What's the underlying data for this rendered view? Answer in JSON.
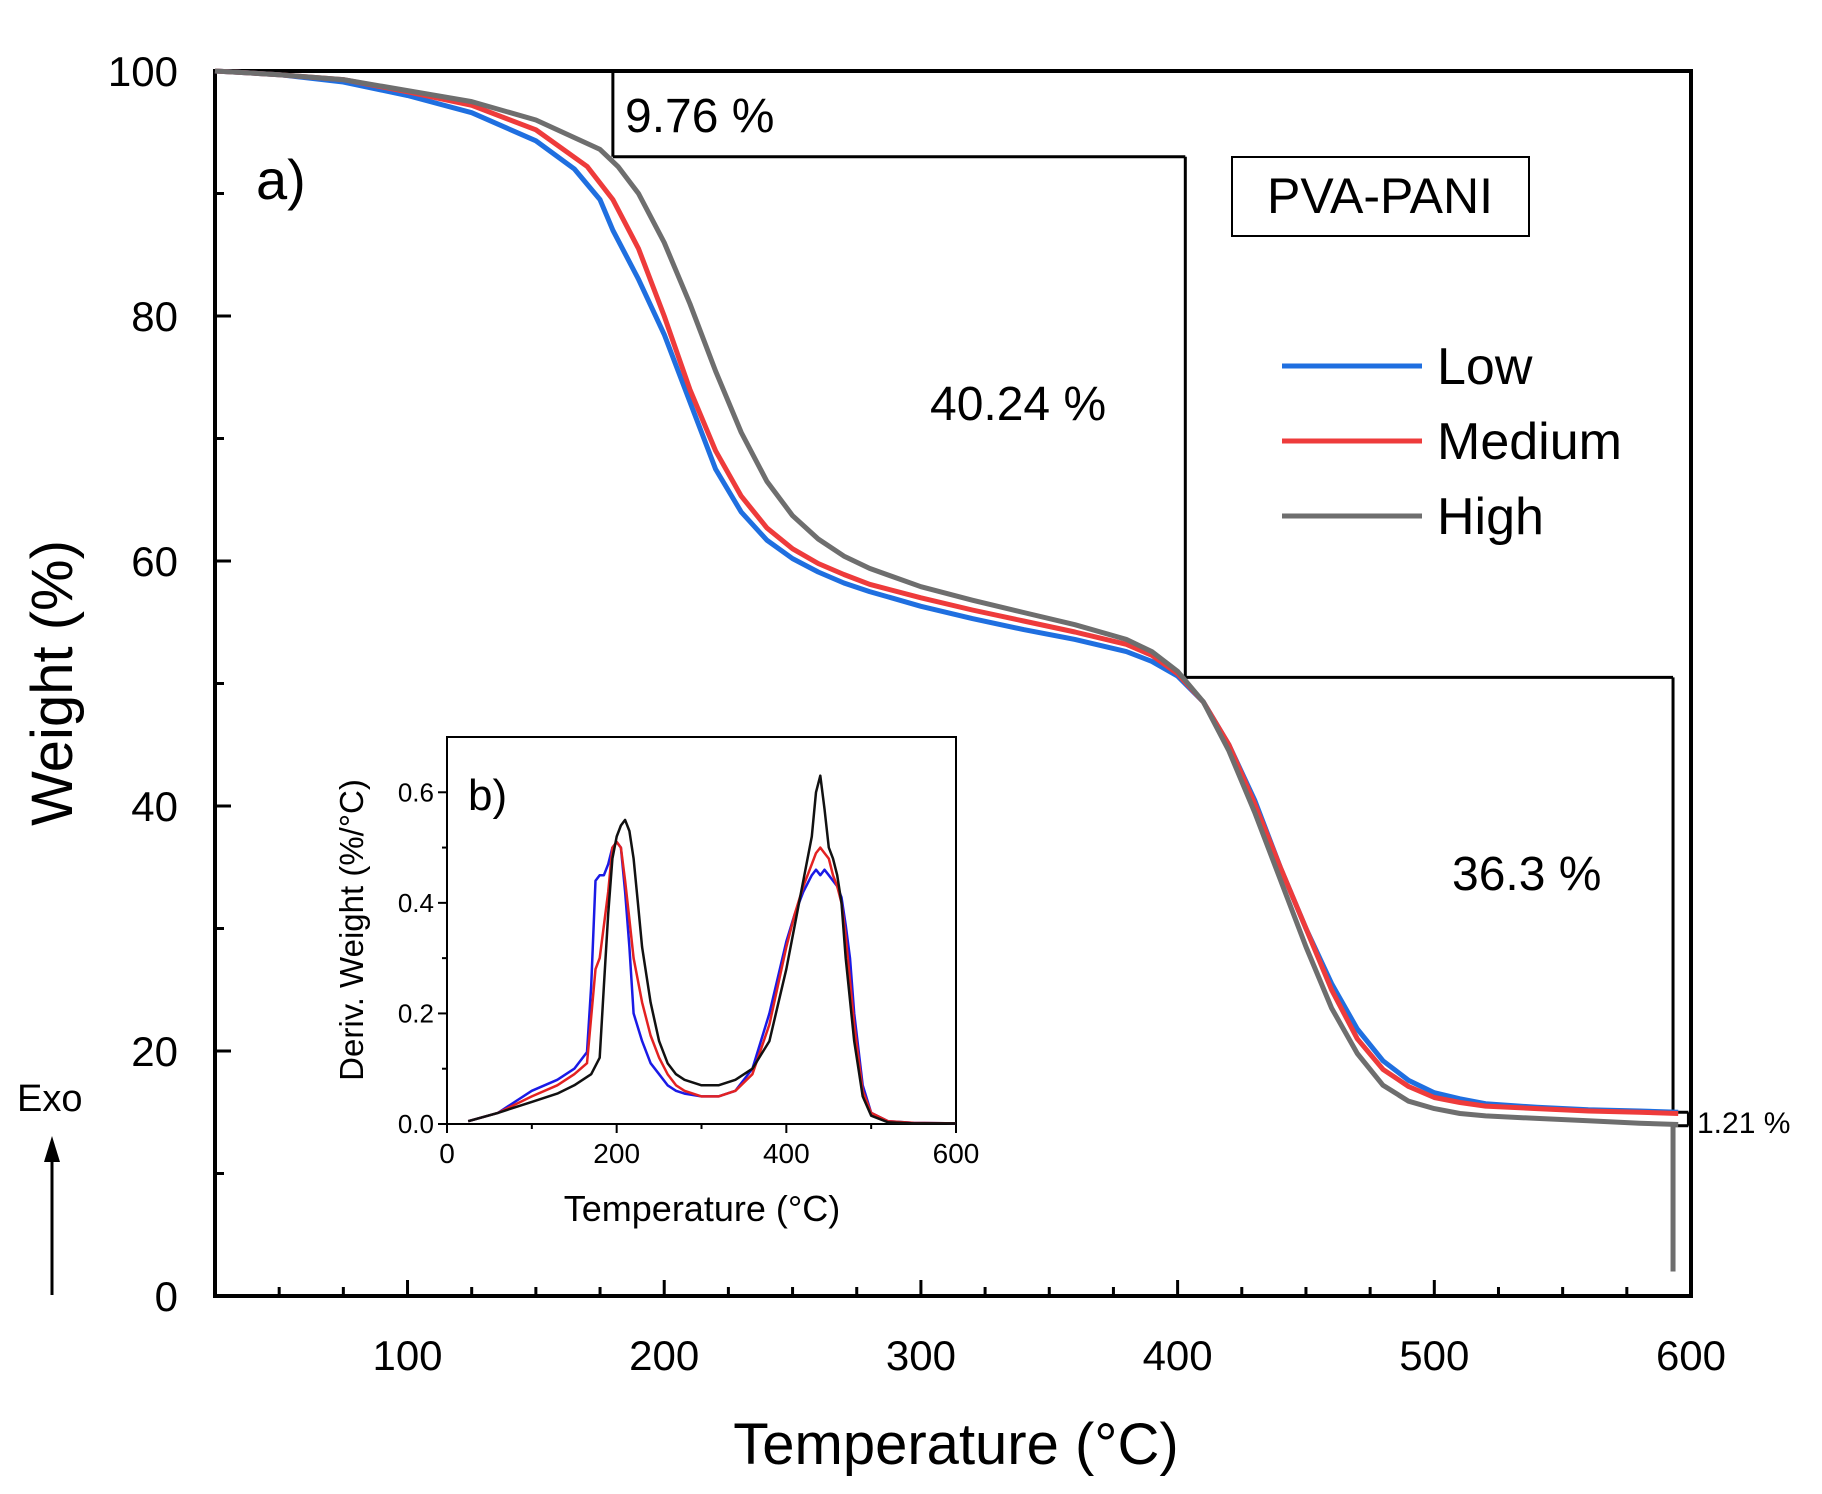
{
  "chart_data": [
    {
      "type": "line",
      "panel_label": "a)",
      "sample_label": "PVA-PANI",
      "xlabel": "Temperature (°C)",
      "ylabel": "Weight (%)",
      "xlim": [
        25,
        600
      ],
      "ylim": [
        0,
        100
      ],
      "xticks": [
        100,
        200,
        300,
        400,
        500,
        600
      ],
      "yticks": [
        0,
        20,
        40,
        60,
        80,
        100
      ],
      "legend": "right",
      "exo_label": "Exo",
      "annotations": [
        {
          "text": "9.76 %"
        },
        {
          "text": "40.24 %"
        },
        {
          "text": "36.3 %"
        },
        {
          "text": "1.21 %"
        }
      ],
      "steps": {
        "t1": 180,
        "w_start": 100,
        "w1": 93.0,
        "t2": 403,
        "w2": 50.5,
        "t3": 593,
        "w_end": 15.0,
        "w_final": 13.9,
        "w_drop": 2.0
      },
      "series": [
        {
          "name": "Low",
          "color": "#1f6fe0",
          "x": [
            25,
            50,
            75,
            100,
            125,
            150,
            165,
            175,
            180,
            190,
            200,
            210,
            220,
            230,
            240,
            250,
            260,
            270,
            280,
            300,
            320,
            340,
            360,
            380,
            390,
            400,
            410,
            420,
            430,
            440,
            450,
            460,
            470,
            480,
            490,
            500,
            510,
            520,
            540,
            560,
            580,
            595
          ],
          "y": [
            100,
            99.7,
            99.1,
            98,
            96.6,
            94.3,
            92,
            89.5,
            87,
            83,
            78.5,
            73,
            67.5,
            64,
            61.7,
            60.2,
            59.1,
            58.2,
            57.5,
            56.3,
            55.3,
            54.4,
            53.6,
            52.6,
            51.8,
            50.6,
            48.5,
            45,
            40.5,
            35,
            30,
            25.5,
            21.8,
            19.2,
            17.6,
            16.6,
            16.1,
            15.7,
            15.4,
            15.2,
            15.1,
            15.0
          ]
        },
        {
          "name": "Medium",
          "color": "#ee3b3b",
          "x": [
            25,
            50,
            75,
            100,
            125,
            150,
            170,
            180,
            190,
            200,
            210,
            220,
            230,
            240,
            250,
            260,
            270,
            280,
            300,
            320,
            340,
            360,
            380,
            390,
            400,
            410,
            420,
            430,
            440,
            450,
            460,
            470,
            480,
            490,
            500,
            510,
            520,
            540,
            560,
            580,
            595
          ],
          "y": [
            100,
            99.7,
            99.3,
            98.3,
            97.2,
            95.2,
            92.2,
            89.5,
            85.5,
            80,
            74,
            69,
            65.3,
            62.7,
            61,
            59.8,
            58.9,
            58.1,
            57,
            56,
            55.1,
            54.2,
            53.2,
            52.3,
            50.8,
            48.5,
            45,
            40.2,
            35,
            30,
            25,
            21,
            18.5,
            17.1,
            16.2,
            15.8,
            15.5,
            15.3,
            15.1,
            15.0,
            14.9
          ]
        },
        {
          "name": "High",
          "color": "#6e6e6e",
          "x": [
            25,
            50,
            75,
            100,
            125,
            150,
            175,
            182,
            190,
            200,
            210,
            220,
            230,
            240,
            250,
            260,
            270,
            280,
            300,
            320,
            340,
            360,
            380,
            390,
            400,
            410,
            420,
            430,
            440,
            450,
            460,
            470,
            480,
            490,
            500,
            510,
            520,
            540,
            560,
            580,
            595
          ],
          "y": [
            100,
            99.7,
            99.3,
            98.4,
            97.5,
            96,
            93.6,
            92.2,
            90,
            86,
            81,
            75.5,
            70.5,
            66.5,
            63.7,
            61.8,
            60.4,
            59.4,
            57.9,
            56.8,
            55.8,
            54.8,
            53.6,
            52.6,
            51,
            48.5,
            44.5,
            39.5,
            34,
            28.5,
            23.5,
            19.8,
            17.2,
            15.9,
            15.3,
            14.9,
            14.7,
            14.5,
            14.3,
            14.1,
            14.0
          ]
        }
      ]
    },
    {
      "type": "line",
      "panel_label": "b)",
      "xlabel": "Temperature (°C)",
      "ylabel": "Deriv. Weight (%/°C)",
      "xlim": [
        0,
        600
      ],
      "ylim": [
        0,
        0.7
      ],
      "xticks": [
        0,
        200,
        400,
        600
      ],
      "yticks": [
        0.0,
        0.2,
        0.4,
        0.6
      ],
      "series": [
        {
          "name": "Low",
          "color": "#1a1ae6",
          "x": [
            25,
            60,
            100,
            130,
            150,
            165,
            170,
            175,
            180,
            185,
            190,
            195,
            200,
            205,
            210,
            215,
            220,
            230,
            240,
            250,
            260,
            270,
            280,
            300,
            320,
            340,
            360,
            380,
            400,
            410,
            420,
            430,
            435,
            440,
            445,
            450,
            455,
            460,
            465,
            470,
            475,
            480,
            490,
            500,
            520,
            550,
            600
          ],
          "y": [
            0.005,
            0.02,
            0.06,
            0.08,
            0.1,
            0.13,
            0.25,
            0.44,
            0.45,
            0.45,
            0.47,
            0.5,
            0.51,
            0.5,
            0.42,
            0.32,
            0.2,
            0.15,
            0.11,
            0.09,
            0.07,
            0.06,
            0.055,
            0.05,
            0.05,
            0.06,
            0.1,
            0.2,
            0.33,
            0.38,
            0.42,
            0.45,
            0.46,
            0.45,
            0.46,
            0.45,
            0.44,
            0.43,
            0.41,
            0.36,
            0.3,
            0.2,
            0.07,
            0.02,
            0.005,
            0.002,
            0.001
          ]
        },
        {
          "name": "Medium",
          "color": "#e32222",
          "x": [
            25,
            60,
            100,
            130,
            150,
            165,
            175,
            180,
            190,
            195,
            200,
            205,
            210,
            215,
            220,
            230,
            240,
            250,
            260,
            270,
            280,
            300,
            320,
            340,
            360,
            380,
            400,
            410,
            420,
            430,
            435,
            440,
            445,
            450,
            455,
            460,
            465,
            470,
            475,
            480,
            490,
            500,
            520,
            550,
            600
          ],
          "y": [
            0.005,
            0.02,
            0.05,
            0.07,
            0.09,
            0.11,
            0.28,
            0.3,
            0.42,
            0.5,
            0.51,
            0.5,
            0.44,
            0.37,
            0.3,
            0.22,
            0.16,
            0.12,
            0.09,
            0.07,
            0.06,
            0.05,
            0.05,
            0.06,
            0.09,
            0.18,
            0.32,
            0.38,
            0.43,
            0.47,
            0.49,
            0.5,
            0.49,
            0.48,
            0.45,
            0.43,
            0.4,
            0.34,
            0.26,
            0.18,
            0.06,
            0.02,
            0.005,
            0.002,
            0.001
          ]
        },
        {
          "name": "High",
          "color": "#111111",
          "x": [
            25,
            60,
            100,
            130,
            150,
            170,
            180,
            185,
            190,
            195,
            200,
            205,
            210,
            215,
            220,
            225,
            230,
            240,
            250,
            260,
            270,
            280,
            300,
            320,
            340,
            360,
            380,
            400,
            410,
            420,
            430,
            435,
            440,
            445,
            450,
            455,
            460,
            465,
            470,
            480,
            490,
            500,
            520,
            550,
            600
          ],
          "y": [
            0.005,
            0.02,
            0.04,
            0.055,
            0.07,
            0.09,
            0.12,
            0.25,
            0.38,
            0.48,
            0.52,
            0.54,
            0.55,
            0.53,
            0.48,
            0.4,
            0.32,
            0.22,
            0.15,
            0.11,
            0.09,
            0.08,
            0.07,
            0.07,
            0.08,
            0.1,
            0.15,
            0.28,
            0.36,
            0.44,
            0.52,
            0.6,
            0.63,
            0.57,
            0.5,
            0.48,
            0.45,
            0.4,
            0.3,
            0.15,
            0.05,
            0.015,
            0.003,
            0.001,
            0.001
          ]
        }
      ]
    }
  ]
}
